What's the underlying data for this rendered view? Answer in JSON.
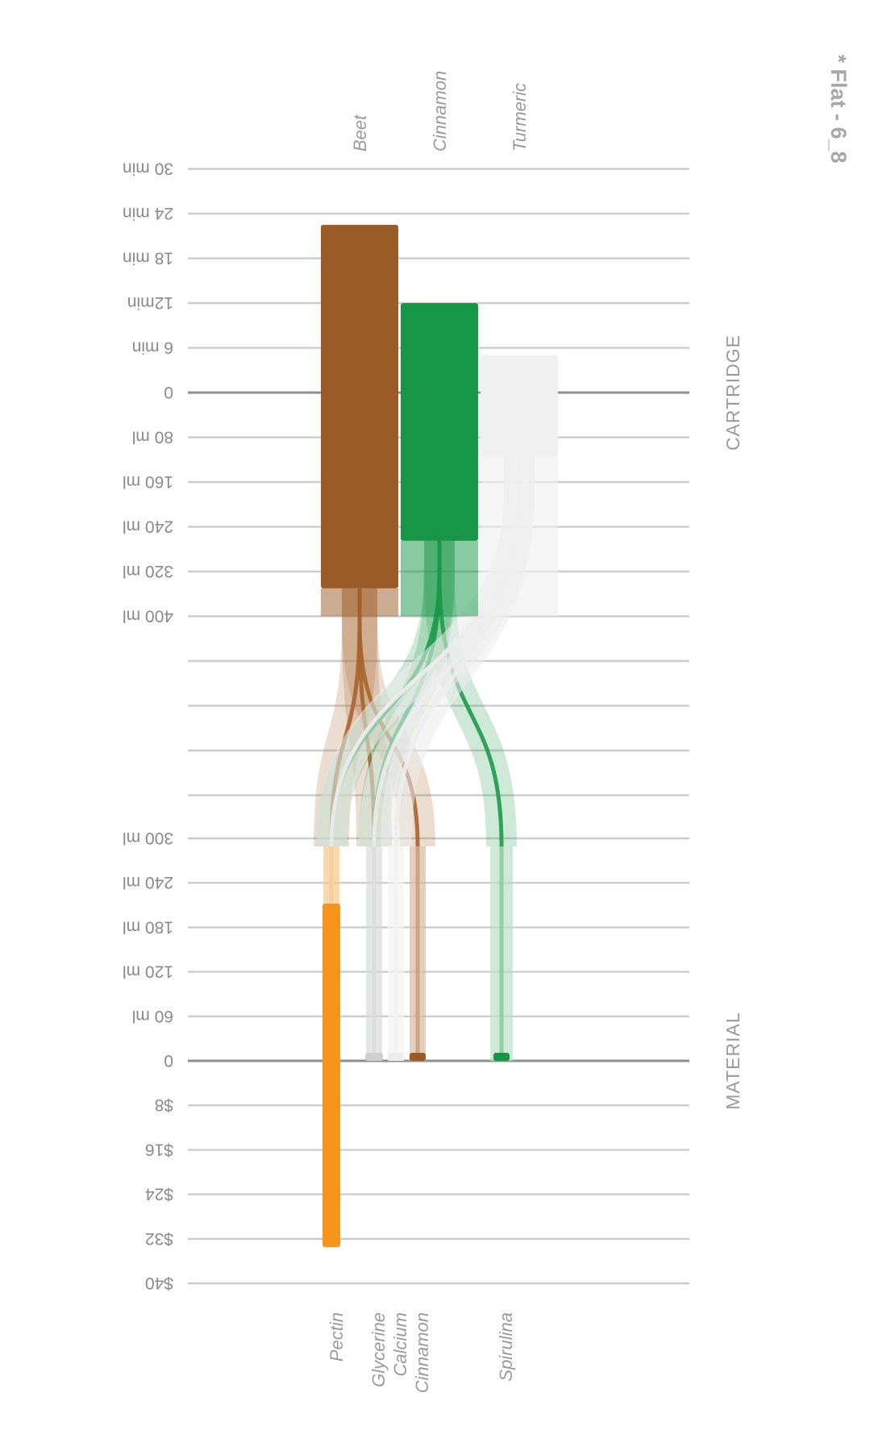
{
  "figure_title": "* Flat - 6_8",
  "chart_data": {
    "type": "sankey",
    "sections": [
      "CARTRIDGE",
      "MATERIAL"
    ],
    "cartridge_axis": {
      "time_ticks": [
        "30 min",
        "24 min",
        "18 min",
        "12min",
        "6 min",
        "0"
      ],
      "volume_ticks": [
        "80 ml",
        "160 ml",
        "240 ml",
        "320 ml",
        "400 ml"
      ]
    },
    "material_axis": {
      "volume_ticks": [
        "300 ml",
        "240 ml",
        "180 ml",
        "120 ml",
        "60 ml",
        "0"
      ],
      "cost_ticks": [
        "$8",
        "$16",
        "$24",
        "$32",
        "$40"
      ]
    },
    "cartridges": [
      {
        "name": "Beet",
        "color": "#9a5b26",
        "time_min": 22.5,
        "volume_ml": 350
      },
      {
        "name": "Cinnamon",
        "color": "#169646",
        "time_min": 12,
        "volume_ml": 265
      },
      {
        "name": "Turmeric",
        "color": "#f0f0f1",
        "time_min": 5,
        "volume_ml": 115
      }
    ],
    "materials": [
      {
        "name": "Pectin",
        "color": "#f7941e",
        "volume_ml": 212,
        "cost_usd": 33.5
      },
      {
        "name": "Glycerine",
        "color": "#cfcfcf",
        "volume_ml": 3,
        "cost_usd": 0
      },
      {
        "name": "Calcium",
        "color": "#ececec",
        "volume_ml": 0.5,
        "cost_usd": 0
      },
      {
        "name": "Cinnamon",
        "color": "#9a5b26",
        "volume_ml": 1.5,
        "cost_usd": 0
      },
      {
        "name": "Spirulina",
        "color": "#169646",
        "volume_ml": 0.5,
        "cost_usd": 0
      }
    ],
    "flows": [
      {
        "from": "Beet",
        "to": "Pectin"
      },
      {
        "from": "Beet",
        "to": "Glycerine"
      },
      {
        "from": "Beet",
        "to": "Cinnamon"
      },
      {
        "from": "Cinnamon",
        "to": "Pectin"
      },
      {
        "from": "Cinnamon",
        "to": "Glycerine"
      },
      {
        "from": "Cinnamon",
        "to": "Spirulina"
      },
      {
        "from": "Turmeric",
        "to": "Pectin"
      },
      {
        "from": "Turmeric",
        "to": "Glycerine"
      },
      {
        "from": "Turmeric",
        "to": "Calcium"
      }
    ]
  }
}
